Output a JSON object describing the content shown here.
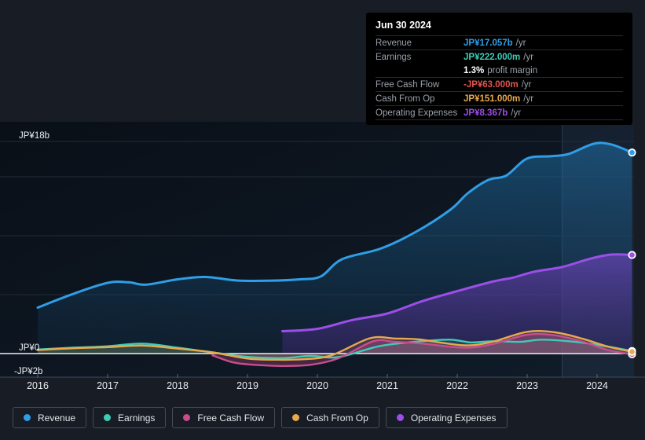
{
  "tooltip": {
    "date": "Jun 30 2024",
    "rows": [
      {
        "label": "Revenue",
        "value": "JP¥17.057b",
        "suffix": "/yr",
        "color": "#2f9ee6",
        "sep": true
      },
      {
        "label": "Earnings",
        "value": "JP¥222.000m",
        "suffix": "/yr",
        "color": "#3fcbb7",
        "sep": true
      },
      {
        "label": "",
        "value": "1.3%",
        "suffix": "profit margin",
        "color": "#ffffff",
        "sep": false
      },
      {
        "label": "Free Cash Flow",
        "value": "-JP¥63.000m",
        "suffix": "/yr",
        "color": "#e2554f",
        "sep": true
      },
      {
        "label": "Cash From Op",
        "value": "JP¥151.000m",
        "suffix": "/yr",
        "color": "#e8a94c",
        "sep": true
      },
      {
        "label": "Operating Expenses",
        "value": "JP¥8.367b",
        "suffix": "/yr",
        "color": "#9d4ee8",
        "sep": true
      }
    ]
  },
  "legend": [
    {
      "label": "Revenue",
      "color": "#2f9ee6"
    },
    {
      "label": "Earnings",
      "color": "#3fcbb7"
    },
    {
      "label": "Free Cash Flow",
      "color": "#c94d8c"
    },
    {
      "label": "Cash From Op",
      "color": "#e8a94c"
    },
    {
      "label": "Operating Expenses",
      "color": "#9d4ee8"
    }
  ],
  "chart_data": {
    "type": "area",
    "unit": "JP¥ billions per year",
    "x_ticks": [
      "2016",
      "2017",
      "2018",
      "2019",
      "2020",
      "2021",
      "2022",
      "2023",
      "2024"
    ],
    "y_labels": [
      {
        "text": "JP¥18b",
        "value": 18
      },
      {
        "text": "JP¥0",
        "value": 0
      },
      {
        "text": "-JP¥2b",
        "value": -2
      }
    ],
    "grid_values": [
      18,
      15,
      10,
      5
    ],
    "ylim": [
      -2,
      20
    ],
    "xlim": [
      2015.46,
      2024.53
    ],
    "highlight_from_x": 2023.5,
    "legend_position": "bottom",
    "series": [
      {
        "name": "Revenue",
        "color": "#2f9ee6",
        "width": 3,
        "fill": "gradient-revenue",
        "x": [
          2016,
          2016.5,
          2017,
          2017.3,
          2017.55,
          2018,
          2018.4,
          2018.85,
          2019.3,
          2019.75,
          2020.05,
          2020.35,
          2020.9,
          2021.4,
          2021.9,
          2022.15,
          2022.45,
          2022.7,
          2023.0,
          2023.35,
          2023.6,
          2023.95,
          2024.2,
          2024.5
        ],
        "values": [
          3.9,
          5.05,
          6.0,
          6.05,
          5.85,
          6.3,
          6.5,
          6.2,
          6.18,
          6.3,
          6.55,
          8.0,
          8.9,
          10.3,
          12.2,
          13.6,
          14.75,
          15.1,
          16.55,
          16.75,
          16.95,
          17.8,
          17.75,
          17.057
        ]
      },
      {
        "name": "Operating Expenses",
        "color": "#9d4ee8",
        "width": 3,
        "fill": "gradient-opex",
        "x": [
          2019.5,
          2020,
          2020.5,
          2021,
          2021.5,
          2022,
          2022.5,
          2022.8,
          2023.1,
          2023.5,
          2023.9,
          2024.2,
          2024.5
        ],
        "values": [
          1.9,
          2.1,
          2.85,
          3.4,
          4.45,
          5.3,
          6.1,
          6.45,
          6.95,
          7.35,
          8.05,
          8.4,
          8.367
        ]
      },
      {
        "name": "Earnings",
        "color": "#3fcbb7",
        "width": 2.4,
        "fill": "rgba(63,203,183,0.16)",
        "x": [
          2016,
          2016.5,
          2017,
          2017.5,
          2018,
          2018.5,
          2019,
          2019.5,
          2019.9,
          2020.3,
          2020.9,
          2021.5,
          2021.9,
          2022.2,
          2022.5,
          2022.9,
          2023.2,
          2023.6,
          2024,
          2024.5
        ],
        "values": [
          0.35,
          0.5,
          0.62,
          0.85,
          0.5,
          0.1,
          -0.28,
          -0.38,
          -0.2,
          -0.3,
          0.65,
          1.05,
          1.18,
          0.95,
          1.05,
          1.0,
          1.18,
          1.05,
          0.75,
          0.222
        ]
      },
      {
        "name": "Free Cash Flow",
        "color": "#c94d8c",
        "width": 2.4,
        "fill": "rgba(201,77,140,0.30)",
        "x": [
          2018.5,
          2018.8,
          2019.1,
          2019.5,
          2019.9,
          2020.3,
          2020.8,
          2021.1,
          2021.5,
          2022.1,
          2022.5,
          2023,
          2023.4,
          2023.8,
          2024.15,
          2024.5
        ],
        "values": [
          -0.15,
          -0.75,
          -0.95,
          -1.05,
          -0.95,
          -0.4,
          1.05,
          1.0,
          0.85,
          0.5,
          0.8,
          1.6,
          1.55,
          1.0,
          0.3,
          -0.063
        ]
      },
      {
        "name": "Cash From Op",
        "color": "#e8a94c",
        "width": 2.4,
        "fill": "rgba(232,169,76,0.15)",
        "x": [
          2016,
          2016.5,
          2017,
          2017.5,
          2018,
          2018.5,
          2019,
          2019.4,
          2019.8,
          2020.2,
          2020.75,
          2021.1,
          2021.45,
          2022.1,
          2022.5,
          2023,
          2023.4,
          2023.8,
          2024.15,
          2024.5
        ],
        "values": [
          0.3,
          0.45,
          0.55,
          0.68,
          0.42,
          0.1,
          -0.42,
          -0.52,
          -0.48,
          -0.15,
          1.3,
          1.28,
          1.2,
          0.7,
          1.0,
          1.85,
          1.8,
          1.25,
          0.6,
          0.151
        ]
      }
    ]
  }
}
